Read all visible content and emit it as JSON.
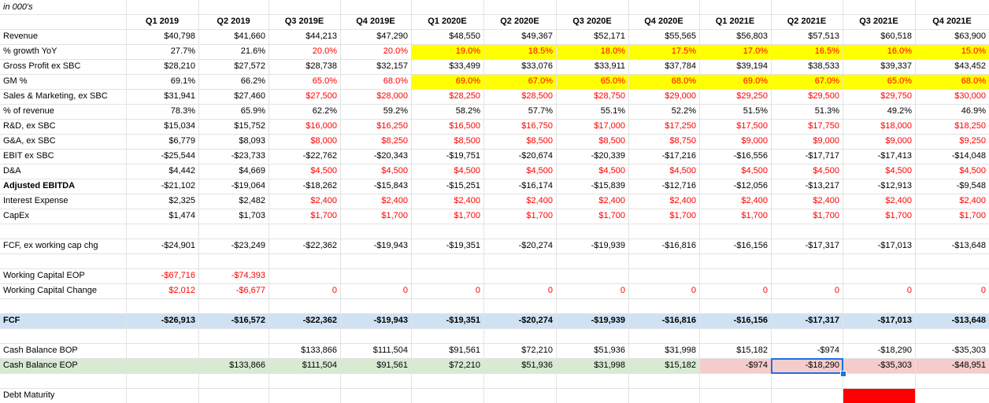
{
  "title": "in 000's",
  "quarters": [
    "Q1 2019",
    "Q2 2019",
    "Q3 2019E",
    "Q4 2019E",
    "Q1 2020E",
    "Q2 2020E",
    "Q3 2020E",
    "Q4 2020E",
    "Q1 2021E",
    "Q2 2021E",
    "Q3 2021E",
    "Q4 2021E"
  ],
  "colors": {
    "yellow": "#ffff00",
    "blue": "#cfe2f3",
    "green": "#d9ead3",
    "pink": "#f4cccc",
    "red_block": "#ff0000",
    "red_text": "#ff0000",
    "selection": "#1a73e8"
  },
  "rows": [
    {
      "key": "revenue",
      "label": "Revenue",
      "values": [
        "$40,798",
        "$41,660",
        "$44,213",
        "$47,290",
        "$48,550",
        "$49,367",
        "$52,171",
        "$55,565",
        "$56,803",
        "$57,513",
        "$60,518",
        "$63,900"
      ]
    },
    {
      "key": "growth",
      "label": " % growth YoY",
      "values": [
        "27.7%",
        "21.6%",
        "20.0%",
        "20.0%",
        "19.0%",
        "18.5%",
        "18.0%",
        "17.5%",
        "17.0%",
        "16.5%",
        "16.0%",
        "15.0%"
      ],
      "red_from": 2,
      "fill": "yellow",
      "fill_from": 2
    },
    {
      "key": "gross_profit",
      "label": "Gross Profit ex SBC",
      "values": [
        "$28,210",
        "$27,572",
        "$28,738",
        "$32,157",
        "$33,499",
        "$33,076",
        "$33,911",
        "$37,784",
        "$39,194",
        "$38,533",
        "$39,337",
        "$43,452"
      ]
    },
    {
      "key": "gm",
      "label": " GM %",
      "values": [
        "69.1%",
        "66.2%",
        "65.0%",
        "68.0%",
        "69.0%",
        "67.0%",
        "65.0%",
        "68.0%",
        "69.0%",
        "67.0%",
        "65.0%",
        "68.0%"
      ],
      "red_from": 2,
      "fill": "yellow",
      "fill_from": 2
    },
    {
      "key": "sm",
      "label": "Sales & Marketing, ex SBC",
      "values": [
        "$31,941",
        "$27,460",
        "$27,500",
        "$28,000",
        "$28,250",
        "$28,500",
        "$28,750",
        "$29,000",
        "$29,250",
        "$29,500",
        "$29,750",
        "$30,000"
      ],
      "red_from": 2
    },
    {
      "key": "pct_rev",
      "label": "  % of revenue",
      "values": [
        "78.3%",
        "65.9%",
        "62.2%",
        "59.2%",
        "58.2%",
        "57.7%",
        "55.1%",
        "52.2%",
        "51.5%",
        "51.3%",
        "49.2%",
        "46.9%"
      ]
    },
    {
      "key": "rd",
      "label": "R&D, ex SBC",
      "values": [
        "$15,034",
        "$15,752",
        "$16,000",
        "$16,250",
        "$16,500",
        "$16,750",
        "$17,000",
        "$17,250",
        "$17,500",
        "$17,750",
        "$18,000",
        "$18,250"
      ],
      "red_from": 2
    },
    {
      "key": "ga",
      "label": "G&A, ex SBC",
      "values": [
        "$6,779",
        "$8,093",
        "$8,000",
        "$8,250",
        "$8,500",
        "$8,500",
        "$8,500",
        "$8,750",
        "$9,000",
        "$9,000",
        "$9,000",
        "$9,250"
      ],
      "red_from": 2
    },
    {
      "key": "ebit",
      "label": "EBIT ex SBC",
      "values": [
        "-$25,544",
        "-$23,733",
        "-$22,762",
        "-$20,343",
        "-$19,751",
        "-$20,674",
        "-$20,339",
        "-$17,216",
        "-$16,556",
        "-$17,717",
        "-$17,413",
        "-$14,048"
      ]
    },
    {
      "key": "da",
      "label": "D&A",
      "values": [
        "$4,442",
        "$4,669",
        "$4,500",
        "$4,500",
        "$4,500",
        "$4,500",
        "$4,500",
        "$4,500",
        "$4,500",
        "$4,500",
        "$4,500",
        "$4,500"
      ],
      "red_from": 2
    },
    {
      "key": "ebitda",
      "label": "Adjusted EBITDA",
      "bold_label": true,
      "values": [
        "-$21,102",
        "-$19,064",
        "-$18,262",
        "-$15,843",
        "-$15,251",
        "-$16,174",
        "-$15,839",
        "-$12,716",
        "-$12,056",
        "-$13,217",
        "-$12,913",
        "-$9,548"
      ]
    },
    {
      "key": "interest",
      "label": "Interest Expense",
      "values": [
        "$2,325",
        "$2,482",
        "$2,400",
        "$2,400",
        "$2,400",
        "$2,400",
        "$2,400",
        "$2,400",
        "$2,400",
        "$2,400",
        "$2,400",
        "$2,400"
      ],
      "red_from": 2
    },
    {
      "key": "capex",
      "label": "CapEx",
      "values": [
        "$1,474",
        "$1,703",
        "$1,700",
        "$1,700",
        "$1,700",
        "$1,700",
        "$1,700",
        "$1,700",
        "$1,700",
        "$1,700",
        "$1,700",
        "$1,700"
      ],
      "red_from": 2
    },
    {
      "key": "fcf_ex",
      "label": "FCF, ex working cap chg",
      "values": [
        "-$24,901",
        "-$23,249",
        "-$22,362",
        "-$19,943",
        "-$19,351",
        "-$20,274",
        "-$19,939",
        "-$16,816",
        "-$16,156",
        "-$17,317",
        "-$17,013",
        "-$13,648"
      ]
    },
    {
      "key": "wc_eop",
      "label": "Working Capital EOP",
      "values": [
        "-$67,716",
        "-$74,393",
        "",
        "",
        "",
        "",
        "",
        "",
        "",
        "",
        "",
        ""
      ],
      "red_from": 0
    },
    {
      "key": "wc_chg",
      "label": "Working Capital Change",
      "values": [
        "$2,012",
        "-$6,677",
        "0",
        "0",
        "0",
        "0",
        "0",
        "0",
        "0",
        "0",
        "0",
        "0"
      ],
      "red_from": 0
    },
    {
      "key": "fcf",
      "label": "FCF",
      "bold_all": true,
      "fill": "blue",
      "values": [
        "-$26,913",
        "-$16,572",
        "-$22,362",
        "-$19,943",
        "-$19,351",
        "-$20,274",
        "-$19,939",
        "-$16,816",
        "-$16,156",
        "-$17,317",
        "-$17,013",
        "-$13,648"
      ]
    },
    {
      "key": "cash_bop",
      "label": "Cash Balance BOP",
      "values": [
        "",
        "",
        "$133,866",
        "$111,504",
        "$91,561",
        "$72,210",
        "$51,936",
        "$31,998",
        "$15,182",
        "-$974",
        "-$18,290",
        "-$35,303"
      ]
    },
    {
      "key": "cash_eop",
      "label": "Cash Balance EOP",
      "fill": "green",
      "values": [
        "",
        "$133,866",
        "$111,504",
        "$91,561",
        "$72,210",
        "$51,936",
        "$31,998",
        "$15,182",
        "-$974",
        "-$18,290",
        "-$35,303",
        "-$48,951"
      ]
    },
    {
      "key": "debt",
      "label": "Debt Maturity",
      "values": [
        "",
        "",
        "",
        "",
        "",
        "",
        "",
        "",
        "",
        "",
        "",
        ""
      ]
    }
  ]
}
